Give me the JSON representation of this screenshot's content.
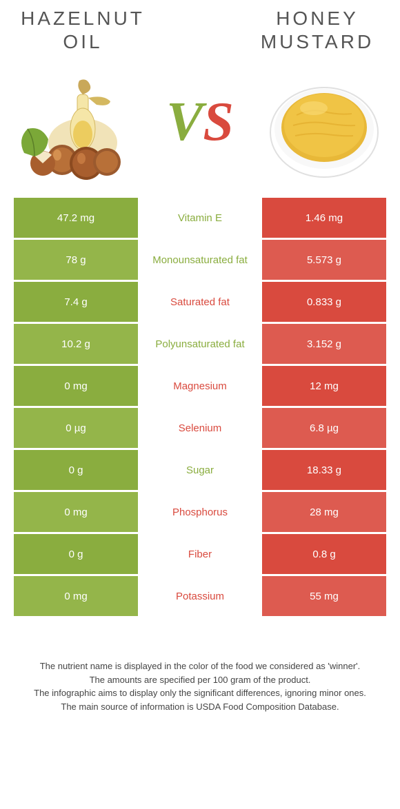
{
  "colors": {
    "green": "#8aad3f",
    "red": "#d94a3e",
    "green_alt": "#94b54a",
    "red_alt": "#dd5b50"
  },
  "left": {
    "title_line1": "HAZELNUT",
    "title_line2": "OIL"
  },
  "right": {
    "title_line1": "HONEY",
    "title_line2": "MUSTARD"
  },
  "vs": {
    "v": "V",
    "s": "S"
  },
  "rows": [
    {
      "left": "47.2 mg",
      "label": "Vitamin E",
      "right": "1.46 mg",
      "winner": "left"
    },
    {
      "left": "78 g",
      "label": "Monounsaturated fat",
      "right": "5.573 g",
      "winner": "left"
    },
    {
      "left": "7.4 g",
      "label": "Saturated fat",
      "right": "0.833 g",
      "winner": "right"
    },
    {
      "left": "10.2 g",
      "label": "Polyunsaturated fat",
      "right": "3.152 g",
      "winner": "left"
    },
    {
      "left": "0 mg",
      "label": "Magnesium",
      "right": "12 mg",
      "winner": "right"
    },
    {
      "left": "0 µg",
      "label": "Selenium",
      "right": "6.8 µg",
      "winner": "right"
    },
    {
      "left": "0 g",
      "label": "Sugar",
      "right": "18.33 g",
      "winner": "left"
    },
    {
      "left": "0 mg",
      "label": "Phosphorus",
      "right": "28 mg",
      "winner": "right"
    },
    {
      "left": "0 g",
      "label": "Fiber",
      "right": "0.8 g",
      "winner": "right"
    },
    {
      "left": "0 mg",
      "label": "Potassium",
      "right": "55 mg",
      "winner": "right"
    }
  ],
  "footer": {
    "line1": "The nutrient name is displayed in the color of the food we considered as 'winner'.",
    "line2": "The amounts are specified per 100 gram of the product.",
    "line3": "The infographic aims to display only the significant differences, ignoring minor ones.",
    "line4": "The main source of information is USDA Food Composition Database."
  }
}
